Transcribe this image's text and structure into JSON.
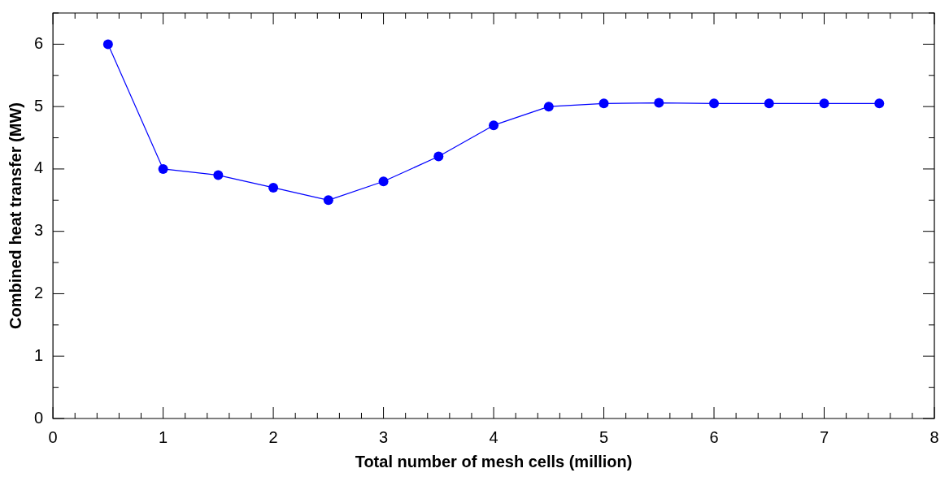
{
  "chart_data": {
    "type": "line",
    "xlabel": "Total number of mesh cells (million)",
    "ylabel": "Combined heat transfer (MW)",
    "x": [
      0.5,
      1,
      1.5,
      2,
      2.5,
      3,
      3.5,
      4,
      4.5,
      5,
      5.5,
      6,
      6.5,
      7,
      7.5
    ],
    "series": [
      {
        "color": "#0000ff",
        "values": [
          6,
          4,
          3.9,
          3.7,
          3.5,
          3.8,
          4.2,
          4.7,
          5.0,
          5.05,
          5.06,
          5.05,
          5.05,
          5.05,
          5.05
        ]
      }
    ],
    "xlim": [
      0,
      8
    ],
    "xticks": [
      0,
      1,
      2,
      3,
      4,
      5,
      6,
      7,
      8
    ],
    "ylim": [
      0,
      6.5
    ],
    "yticks": [
      0,
      1,
      2,
      3,
      4,
      5,
      6
    ],
    "grid": false,
    "legend": false,
    "marker": "circle",
    "line_style": "solid"
  }
}
